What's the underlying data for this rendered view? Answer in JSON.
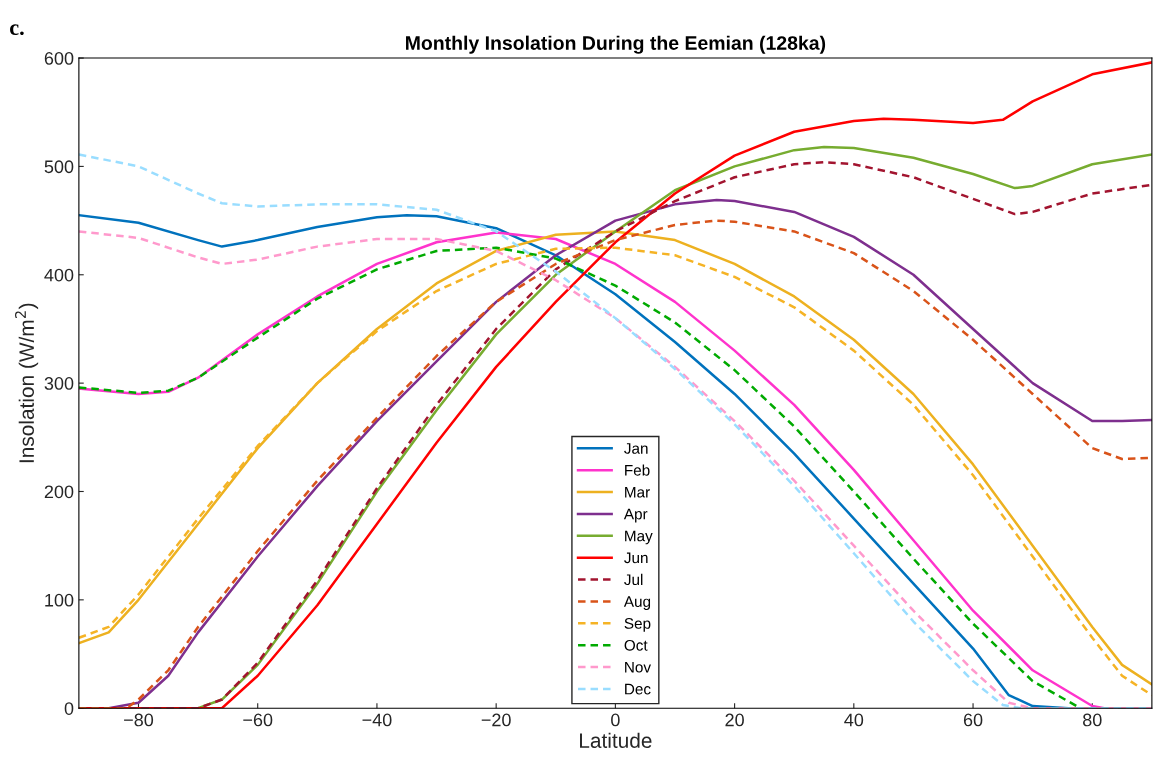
{
  "chart_data": {
    "type": "line",
    "title": "Monthly Insolation During the Eemian (128ka)",
    "xlabel": "Latitude",
    "ylabel": "Insolation (W/m$^{2}$)",
    "annotations": [
      "c."
    ],
    "xlim": [
      -90,
      90
    ],
    "ylim": [
      0,
      600
    ],
    "xticks": [
      -80,
      -60,
      -40,
      -20,
      0,
      20,
      40,
      60,
      80
    ],
    "yticks": [
      0,
      100,
      200,
      300,
      400,
      500,
      600
    ],
    "grid": false,
    "legend": "bottom",
    "series": [
      {
        "name": "Jan",
        "color": "#0072bd",
        "line_style": "solid",
        "x": [
          -90,
          -80,
          -70,
          -66,
          -60,
          -50,
          -40,
          -35,
          -30,
          -20,
          -10,
          0,
          10,
          20,
          30,
          40,
          50,
          60,
          66,
          70,
          76,
          90
        ],
        "values": [
          455,
          448,
          432,
          426,
          432,
          444,
          453,
          455,
          454,
          443,
          418,
          382,
          338,
          290,
          235,
          175,
          115,
          55,
          12,
          2,
          0,
          0
        ]
      },
      {
        "name": "Feb",
        "color": "#ff33cc",
        "line_style": "solid",
        "x": [
          -90,
          -80,
          -75,
          -70,
          -60,
          -50,
          -40,
          -30,
          -20,
          -10,
          0,
          10,
          20,
          30,
          40,
          50,
          60,
          70,
          80,
          82,
          90
        ],
        "values": [
          295,
          290,
          292,
          305,
          345,
          380,
          410,
          430,
          439,
          433,
          410,
          375,
          330,
          280,
          220,
          155,
          90,
          35,
          2,
          0,
          0
        ]
      },
      {
        "name": "Mar",
        "color": "#edb120",
        "line_style": "solid",
        "x": [
          -90,
          -85,
          -80,
          -70,
          -60,
          -50,
          -40,
          -30,
          -20,
          -10,
          0,
          10,
          20,
          30,
          40,
          50,
          60,
          70,
          80,
          85,
          90
        ],
        "values": [
          60,
          70,
          100,
          170,
          240,
          300,
          350,
          392,
          422,
          437,
          440,
          432,
          410,
          380,
          340,
          290,
          225,
          150,
          75,
          40,
          22
        ]
      },
      {
        "name": "Apr",
        "color": "#7e2f8e",
        "line_style": "solid",
        "x": [
          -90,
          -85,
          -80,
          -75,
          -70,
          -60,
          -50,
          -40,
          -30,
          -20,
          -10,
          0,
          10,
          17,
          20,
          30,
          40,
          50,
          60,
          70,
          80,
          85,
          90
        ],
        "values": [
          0,
          0,
          5,
          30,
          70,
          140,
          205,
          265,
          320,
          375,
          418,
          450,
          465,
          469,
          468,
          458,
          435,
          400,
          350,
          300,
          265,
          265,
          266
        ]
      },
      {
        "name": "May",
        "color": "#77ac30",
        "line_style": "solid",
        "x": [
          -90,
          -70,
          -66,
          -60,
          -50,
          -40,
          -30,
          -20,
          -10,
          0,
          10,
          20,
          30,
          35,
          40,
          50,
          60,
          67,
          70,
          80,
          90
        ],
        "values": [
          0,
          0,
          8,
          40,
          115,
          200,
          275,
          345,
          400,
          440,
          478,
          500,
          515,
          518,
          517,
          508,
          493,
          480,
          482,
          502,
          511
        ]
      },
      {
        "name": "Jun",
        "color": "#ff0000",
        "line_style": "solid",
        "x": [
          -90,
          -66,
          -60,
          -50,
          -40,
          -30,
          -20,
          -10,
          0,
          10,
          20,
          30,
          40,
          45,
          50,
          60,
          65,
          70,
          80,
          90
        ],
        "values": [
          0,
          0,
          30,
          95,
          170,
          245,
          315,
          375,
          430,
          475,
          510,
          532,
          542,
          544,
          543,
          540,
          543,
          560,
          585,
          596
        ]
      },
      {
        "name": "Jul",
        "color": "#a2142f",
        "line_style": "dashed",
        "x": [
          -90,
          -70,
          -66,
          -60,
          -50,
          -40,
          -30,
          -20,
          -10,
          0,
          10,
          20,
          30,
          35,
          40,
          50,
          60,
          67,
          70,
          80,
          90
        ],
        "values": [
          0,
          0,
          8,
          42,
          118,
          203,
          280,
          350,
          405,
          440,
          468,
          490,
          502,
          504,
          502,
          490,
          470,
          456,
          458,
          475,
          483
        ]
      },
      {
        "name": "Aug",
        "color": "#d95319",
        "line_style": "dashed",
        "x": [
          -90,
          -82,
          -80,
          -75,
          -70,
          -60,
          -50,
          -40,
          -30,
          -20,
          -10,
          0,
          10,
          17,
          20,
          30,
          40,
          50,
          60,
          70,
          80,
          85,
          90
        ],
        "values": [
          0,
          0,
          8,
          35,
          75,
          145,
          210,
          268,
          325,
          375,
          410,
          432,
          446,
          450,
          449,
          440,
          420,
          385,
          340,
          290,
          240,
          230,
          231
        ]
      },
      {
        "name": "Sep",
        "color": "#f5b325",
        "line_style": "dashed",
        "x": [
          -90,
          -85,
          -80,
          -70,
          -60,
          -50,
          -40,
          -30,
          -20,
          -10,
          0,
          10,
          20,
          30,
          40,
          50,
          60,
          70,
          80,
          85,
          90
        ],
        "values": [
          65,
          75,
          105,
          175,
          242,
          300,
          348,
          385,
          410,
          424,
          425,
          418,
          398,
          370,
          330,
          280,
          215,
          140,
          65,
          30,
          12
        ]
      },
      {
        "name": "Oct",
        "color": "#00aa00",
        "line_style": "dashed",
        "x": [
          -90,
          -80,
          -75,
          -70,
          -60,
          -50,
          -40,
          -30,
          -20,
          -10,
          0,
          10,
          20,
          30,
          40,
          50,
          60,
          70,
          78,
          90
        ],
        "values": [
          296,
          291,
          293,
          305,
          342,
          378,
          405,
          422,
          425,
          415,
          390,
          356,
          312,
          260,
          200,
          138,
          78,
          25,
          0,
          0
        ]
      },
      {
        "name": "Nov",
        "color": "#ff99cc",
        "line_style": "dashed",
        "x": [
          -90,
          -80,
          -70,
          -66,
          -60,
          -50,
          -40,
          -30,
          -20,
          -10,
          0,
          10,
          20,
          30,
          40,
          50,
          60,
          66,
          70,
          90
        ],
        "values": [
          440,
          434,
          416,
          410,
          414,
          426,
          433,
          433,
          422,
          395,
          360,
          315,
          265,
          210,
          150,
          90,
          35,
          5,
          0,
          0
        ]
      },
      {
        "name": "Dec",
        "color": "#99ddff",
        "line_style": "dashed",
        "x": [
          -90,
          -80,
          -70,
          -66,
          -60,
          -50,
          -40,
          -30,
          -20,
          -10,
          0,
          10,
          20,
          30,
          40,
          50,
          60,
          65,
          68,
          90
        ],
        "values": [
          511,
          500,
          475,
          466,
          463,
          465,
          465,
          460,
          440,
          403,
          360,
          313,
          262,
          205,
          143,
          80,
          25,
          3,
          0,
          0
        ]
      }
    ]
  }
}
